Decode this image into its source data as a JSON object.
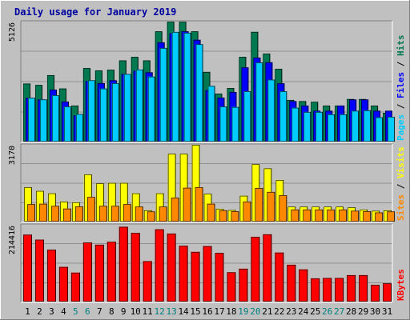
{
  "chart_data": {
    "type": "bar",
    "title": "Daily usage for January 2019",
    "categories": [
      "1",
      "2",
      "3",
      "4",
      "5",
      "6",
      "7",
      "8",
      "9",
      "10",
      "11",
      "12",
      "13",
      "14",
      "15",
      "16",
      "17",
      "18",
      "19",
      "20",
      "21",
      "22",
      "23",
      "24",
      "25",
      "26",
      "27",
      "28",
      "29",
      "30",
      "31"
    ],
    "weekend_days": [
      "5",
      "6",
      "12",
      "13",
      "19",
      "20",
      "26",
      "27"
    ],
    "colors": {
      "title": "#0000a0",
      "hits": "#007850",
      "files": "#0000ff",
      "pages": "#00ccff",
      "visits": "#ffff00",
      "sites": "#ff8800",
      "kbytes": "#ff0000",
      "weekend_label": "#008080",
      "plot_bg": "#c0c0c0",
      "grid": "#909090"
    },
    "panels": [
      {
        "id": "hits-files-pages",
        "ymax_label": "5126",
        "ymax": 5126,
        "side_label": [
          {
            "text": "Pages",
            "color": "#00ccff"
          },
          {
            "text": " / ",
            "color": "#000000"
          },
          {
            "text": "Files",
            "color": "#0000ff"
          },
          {
            "text": " / ",
            "color": "#000000"
          },
          {
            "text": "Hits",
            "color": "#007850"
          }
        ],
        "series": [
          {
            "name": "Hits",
            "values": [
              2480,
              2420,
              2840,
              2270,
              1540,
              3140,
              3040,
              3070,
              3470,
              3620,
              3470,
              4710,
              5120,
              5120,
              4710,
              2980,
              2050,
              2290,
              3620,
              4690,
              3760,
              3110,
              1780,
              1730,
              1700,
              1540,
              1540,
              1820,
              1820,
              1540,
              1230
            ]
          },
          {
            "name": "Files",
            "values": [
              1870,
              1800,
              2220,
              1710,
              1120,
              2590,
              2500,
              2620,
              2890,
              3030,
              2960,
              4240,
              4630,
              4710,
              4350,
              2200,
              1880,
              2120,
              3170,
              3590,
              3390,
              2490,
              1730,
              1540,
              1320,
              1320,
              1540,
              1800,
              1800,
              1320,
              1320
            ]
          },
          {
            "name": "Pages",
            "values": [
              1870,
              1800,
              1980,
              1500,
              1180,
              2620,
              2270,
              2500,
              2890,
              3080,
              2780,
              4000,
              4690,
              4650,
              4160,
              2380,
              1500,
              1480,
              2150,
              3380,
              2650,
              2150,
              1450,
              1270,
              1270,
              1170,
              1170,
              1320,
              1340,
              1040,
              1060
            ]
          }
        ]
      },
      {
        "id": "visits-sites",
        "ymax_label": "3170",
        "ymax": 3170,
        "side_label": [
          {
            "text": "Sites",
            "color": "#ff8800"
          },
          {
            "text": " / ",
            "color": "#000000"
          },
          {
            "text": "Visits",
            "color": "#ffff00"
          }
        ],
        "series": [
          {
            "name": "Visits",
            "values": [
              1420,
              1270,
              1170,
              830,
              800,
              1950,
              1580,
              1600,
              1600,
              1170,
              470,
              1170,
              2800,
              2800,
              3170,
              1150,
              530,
              480,
              1070,
              2370,
              2200,
              1720,
              620,
              620,
              620,
              620,
              620,
              590,
              500,
              450,
              470
            ]
          },
          {
            "name": "Sites",
            "values": [
              720,
              740,
              650,
              540,
              630,
              1020,
              650,
              650,
              720,
              620,
              420,
              620,
              990,
              1400,
              1420,
              740,
              470,
              430,
              830,
              1390,
              1230,
              1090,
              500,
              500,
              500,
              500,
              500,
              450,
              430,
              380,
              420
            ]
          }
        ]
      },
      {
        "id": "kbytes",
        "ymax_label": "214416",
        "ymax": 214416,
        "side_label": [
          {
            "text": "KBytes",
            "color": "#ff0000"
          }
        ],
        "series": [
          {
            "name": "KBytes",
            "values": [
              187000,
              173000,
              145000,
              97000,
              81000,
              165000,
              159000,
              167000,
              209000,
              192000,
              113000,
              202000,
              190000,
              156000,
              139000,
              155000,
              136000,
              82000,
              92000,
              181000,
              188000,
              137000,
              103000,
              90000,
              65000,
              66000,
              66000,
              74000,
              74000,
              47000,
              51000
            ]
          }
        ]
      }
    ]
  }
}
